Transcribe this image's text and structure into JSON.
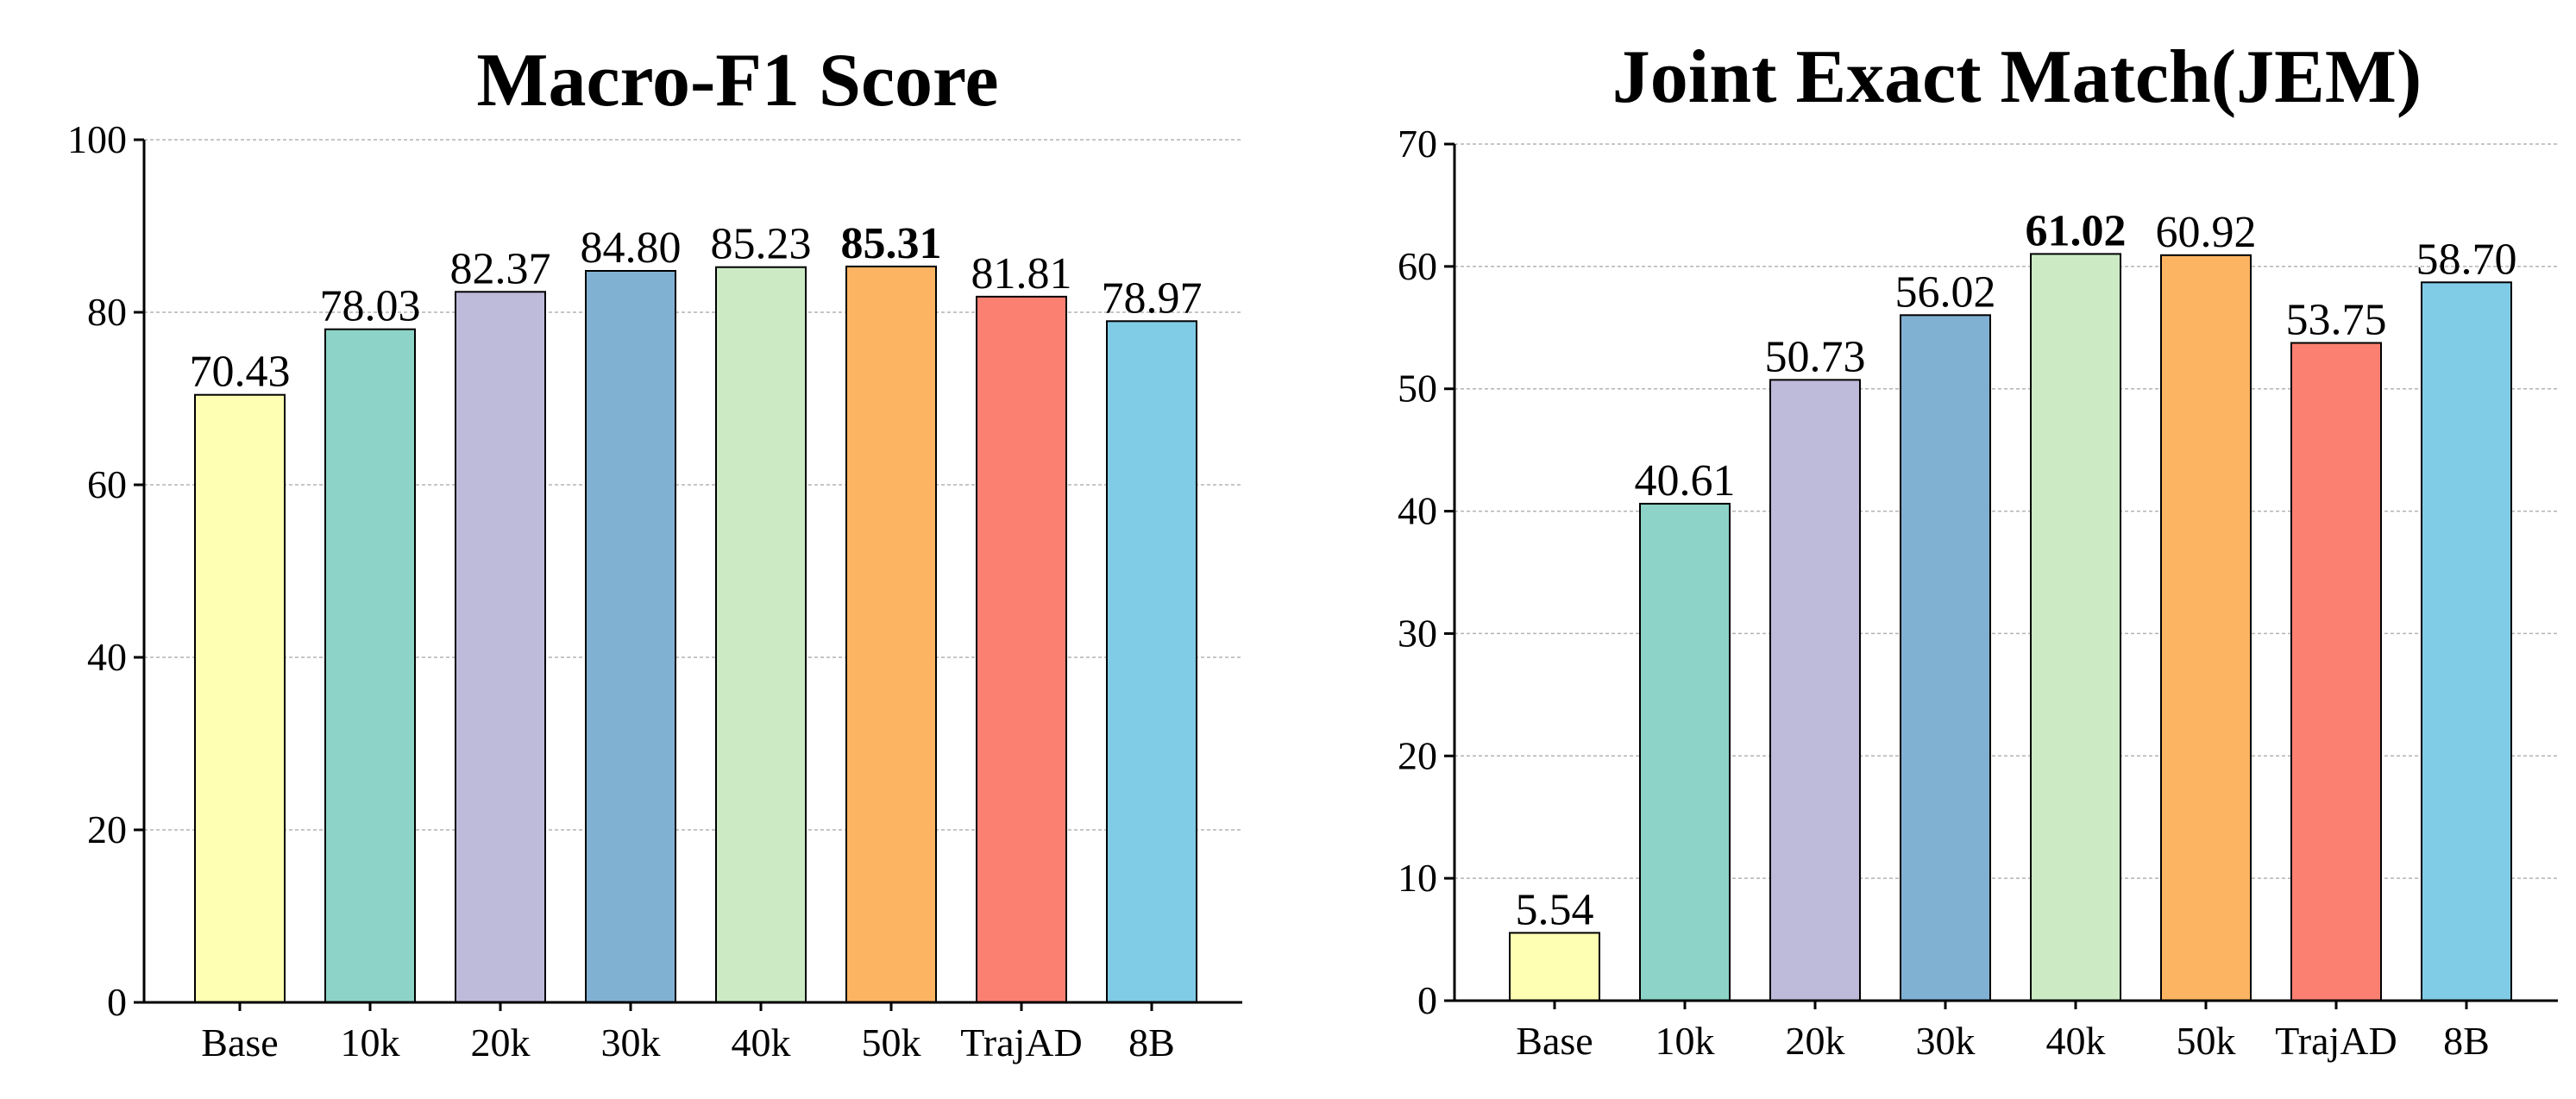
{
  "chart_data": [
    {
      "type": "bar",
      "title": "Macro-F1 Score",
      "xlabel": "",
      "ylabel": "",
      "categories": [
        "Base",
        "10k",
        "20k",
        "30k",
        "40k",
        "50k",
        "TrajAD",
        "8B"
      ],
      "values": [
        70.43,
        78.03,
        82.37,
        84.8,
        85.23,
        85.31,
        81.81,
        78.97
      ],
      "value_labels": [
        "70.43",
        "78.03",
        "82.37",
        "84.80",
        "85.23",
        "85.31",
        "81.81",
        "78.97"
      ],
      "highlight_index": 5,
      "ylim": [
        0,
        100
      ],
      "yticks": [
        0,
        20,
        40,
        60,
        80,
        100
      ],
      "grid": true,
      "legend": "none"
    },
    {
      "type": "bar",
      "title": "Joint Exact Match(JEM)",
      "xlabel": "",
      "ylabel": "",
      "categories": [
        "Base",
        "10k",
        "20k",
        "30k",
        "40k",
        "50k",
        "TrajAD",
        "8B"
      ],
      "values": [
        5.54,
        40.61,
        50.73,
        56.02,
        61.02,
        60.92,
        53.75,
        58.7
      ],
      "value_labels": [
        "5.54",
        "40.61",
        "50.73",
        "56.02",
        "61.02",
        "60.92",
        "53.75",
        "58.70"
      ],
      "highlight_index": 4,
      "ylim": [
        0,
        70
      ],
      "yticks": [
        0,
        10,
        20,
        30,
        40,
        50,
        60,
        70
      ],
      "grid": true,
      "legend": "none"
    }
  ],
  "colors": {
    "bars": [
      "#ffffb3",
      "#8dd3c7",
      "#bebada",
      "#80b1d3",
      "#ccebc5",
      "#fdb462",
      "#fb8072",
      "#80cbe6"
    ],
    "grid": "#b3b3b3",
    "axis": "#000000"
  }
}
